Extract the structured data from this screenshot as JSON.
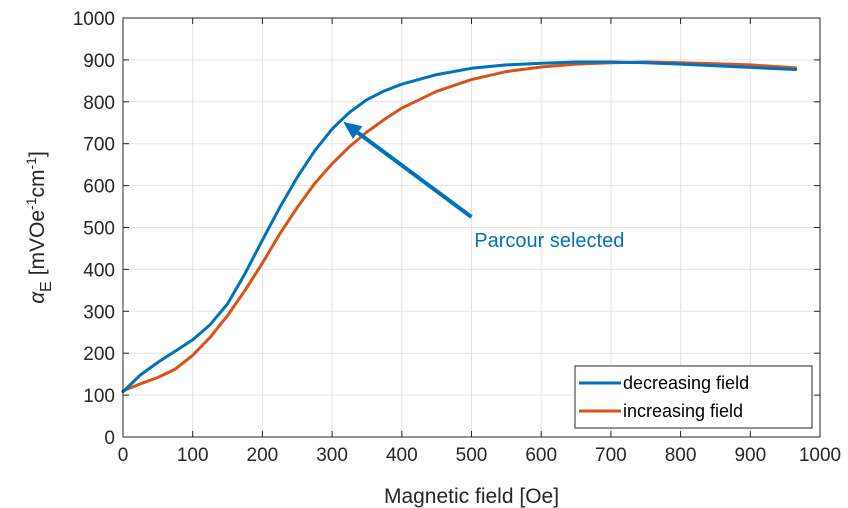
{
  "chart_data": {
    "type": "line",
    "xlabel": "Magnetic field [Oe]",
    "ylabel": {
      "symbol": "α",
      "subscript": "E",
      "unit_open": " [mVOe",
      "exp1": "-1",
      "unit_mid": "cm",
      "exp2": "-1",
      "unit_close": "]"
    },
    "xlim": [
      0,
      1000
    ],
    "ylim": [
      0,
      1000
    ],
    "xticks": [
      0,
      100,
      200,
      300,
      400,
      500,
      600,
      700,
      800,
      900,
      1000
    ],
    "yticks": [
      0,
      100,
      200,
      300,
      400,
      500,
      600,
      700,
      800,
      900,
      1000
    ],
    "grid": true,
    "legend_position": "bottom-right",
    "series": [
      {
        "name": "decreasing field",
        "color": "#0072BD",
        "x": [
          0,
          25,
          50,
          75,
          100,
          125,
          150,
          175,
          200,
          225,
          250,
          275,
          300,
          325,
          350,
          375,
          400,
          450,
          500,
          550,
          600,
          650,
          700,
          750,
          800,
          850,
          900,
          965
        ],
        "y": [
          108,
          148,
          178,
          205,
          232,
          268,
          318,
          390,
          470,
          548,
          620,
          683,
          735,
          775,
          805,
          826,
          842,
          865,
          880,
          888,
          892,
          895,
          895,
          893,
          890,
          886,
          882,
          877
        ]
      },
      {
        "name": "increasing field",
        "color": "#D95319",
        "x": [
          0,
          25,
          50,
          75,
          100,
          125,
          150,
          175,
          200,
          225,
          250,
          275,
          300,
          325,
          350,
          375,
          400,
          450,
          500,
          550,
          600,
          650,
          700,
          750,
          800,
          850,
          900,
          965
        ],
        "y": [
          110,
          127,
          142,
          162,
          195,
          238,
          290,
          350,
          415,
          485,
          548,
          605,
          652,
          693,
          728,
          758,
          785,
          825,
          853,
          872,
          883,
          890,
          893,
          895,
          893,
          891,
          888,
          881
        ]
      }
    ],
    "annotation": {
      "text": "Parcour selected",
      "color": "#0072BD",
      "arrow_from": [
        500,
        525
      ],
      "arrow_to": [
        316,
        752
      ]
    }
  }
}
